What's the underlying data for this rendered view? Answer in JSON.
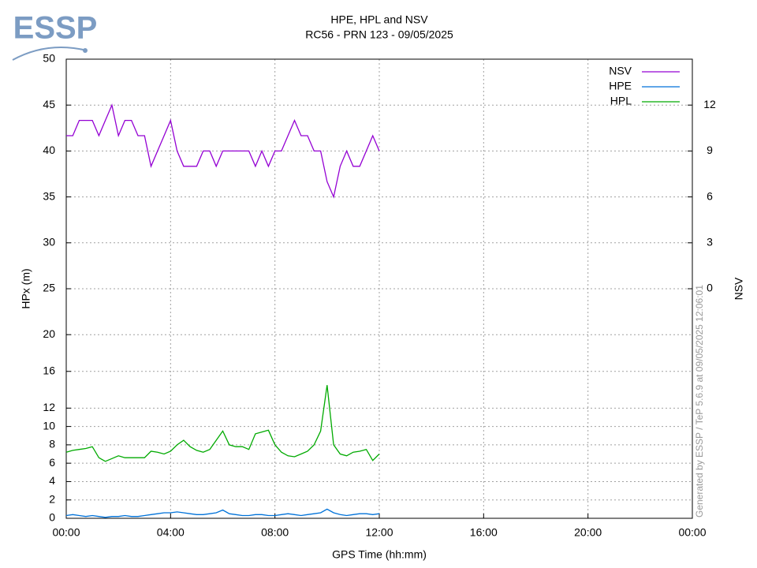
{
  "logo": "ESSP",
  "credit": "Generated by ESSP / TeP 5.6.9 at 09/05/2025 12:06:01",
  "chart_data": {
    "type": "line",
    "title": "HPE, HPL and NSV",
    "subtitle": "RC56 - PRN 123 - 09/05/2025",
    "xlabel": "GPS Time (hh:mm)",
    "ylabel": "HPx (m)",
    "y2label": "NSV",
    "grid": true,
    "legend": "top-right",
    "xlim": [
      0,
      24
    ],
    "xticks": [
      {
        "value": 0,
        "label": "00:00"
      },
      {
        "value": 4,
        "label": "04:00"
      },
      {
        "value": 8,
        "label": "08:00"
      },
      {
        "value": 12,
        "label": "12:00"
      },
      {
        "value": 16,
        "label": "16:00"
      },
      {
        "value": 20,
        "label": "20:00"
      },
      {
        "value": 24,
        "label": "00:00"
      }
    ],
    "ylim": [
      0,
      50
    ],
    "yticks": [
      0,
      2,
      4,
      6,
      8,
      10,
      12,
      16,
      20,
      25,
      30,
      35,
      40,
      45,
      50
    ],
    "y2lim": [
      -15,
      15
    ],
    "y2ticks": [
      0,
      3,
      6,
      9,
      12
    ],
    "x": [
      0,
      0.25,
      0.5,
      0.75,
      1,
      1.25,
      1.5,
      1.75,
      2,
      2.25,
      2.5,
      2.75,
      3,
      3.25,
      3.5,
      3.75,
      4,
      4.25,
      4.5,
      4.75,
      5,
      5.25,
      5.5,
      5.75,
      6,
      6.25,
      6.5,
      6.75,
      7,
      7.25,
      7.5,
      7.75,
      8,
      8.25,
      8.5,
      8.75,
      9,
      9.25,
      9.5,
      9.75,
      10,
      10.25,
      10.5,
      10.75,
      11,
      11.25,
      11.5,
      11.75,
      12
    ],
    "series": [
      {
        "name": "NSV",
        "color": "#9400d3",
        "axis": "y2",
        "values": [
          10,
          10,
          11,
          11,
          11,
          10,
          11,
          12,
          10,
          11,
          11,
          10,
          10,
          8,
          9,
          10,
          11,
          9,
          8,
          8,
          8,
          9,
          9,
          8,
          9,
          9,
          9,
          9,
          9,
          8,
          9,
          8,
          9,
          9,
          10,
          11,
          10,
          10,
          9,
          9,
          7,
          6,
          8,
          9,
          8,
          8,
          9,
          10,
          9
        ]
      },
      {
        "name": "HPE",
        "color": "#0072d9",
        "values": [
          0.3,
          0.4,
          0.3,
          0.2,
          0.3,
          0.2,
          0.1,
          0.2,
          0.2,
          0.3,
          0.2,
          0.2,
          0.3,
          0.4,
          0.5,
          0.6,
          0.6,
          0.7,
          0.6,
          0.5,
          0.4,
          0.4,
          0.5,
          0.6,
          0.9,
          0.5,
          0.4,
          0.3,
          0.3,
          0.4,
          0.4,
          0.3,
          0.3,
          0.4,
          0.5,
          0.4,
          0.3,
          0.4,
          0.5,
          0.6,
          1.0,
          0.6,
          0.4,
          0.3,
          0.4,
          0.5,
          0.5,
          0.4,
          0.5
        ]
      },
      {
        "name": "HPL",
        "color": "#00aa00",
        "values": [
          7.2,
          7.4,
          7.5,
          7.6,
          7.8,
          6.6,
          6.2,
          6.5,
          6.8,
          6.6,
          6.6,
          6.6,
          6.6,
          7.3,
          7.2,
          7.0,
          7.3,
          8.0,
          8.5,
          7.8,
          7.4,
          7.2,
          7.5,
          8.5,
          9.5,
          8.0,
          7.8,
          7.8,
          7.5,
          9.2,
          9.4,
          9.6,
          8.0,
          7.2,
          6.8,
          6.7,
          7.0,
          7.3,
          8.0,
          9.5,
          14.5,
          8.0,
          7.0,
          6.8,
          7.2,
          7.3,
          7.5,
          6.3,
          7.0
        ]
      }
    ]
  }
}
